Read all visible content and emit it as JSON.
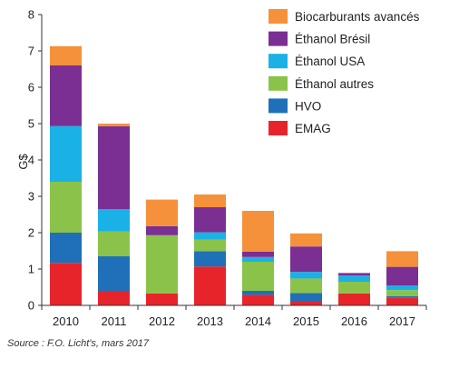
{
  "chart_data": {
    "type": "bar",
    "stacked": true,
    "categories": [
      "2010",
      "2011",
      "2012",
      "2013",
      "2014",
      "2015",
      "2016",
      "2017"
    ],
    "ylabel": "G$",
    "ylim": [
      0,
      8
    ],
    "yticks": [
      0,
      1,
      2,
      3,
      4,
      5,
      6,
      7,
      8
    ],
    "grid": false,
    "legend_position": "top-right",
    "series": [
      {
        "name": "EMAG",
        "color": "#e8242b",
        "values": [
          1.17,
          0.4,
          0.33,
          1.07,
          0.29,
          0.1,
          0.33,
          0.22
        ]
      },
      {
        "name": "HVO",
        "color": "#1f70b8",
        "values": [
          0.83,
          0.95,
          0.0,
          0.42,
          0.11,
          0.24,
          0.0,
          0.03
        ]
      },
      {
        "name": "Éthanol autres",
        "color": "#8bc34a",
        "values": [
          1.4,
          0.68,
          1.6,
          0.32,
          0.8,
          0.4,
          0.32,
          0.17
        ]
      },
      {
        "name": "Éthanol USA",
        "color": "#1ab1e6",
        "values": [
          1.53,
          0.62,
          0.0,
          0.2,
          0.13,
          0.18,
          0.17,
          0.13
        ]
      },
      {
        "name": "Éthanol Brésil",
        "color": "#7b2f92",
        "values": [
          1.67,
          2.28,
          0.25,
          0.69,
          0.15,
          0.7,
          0.07,
          0.51
        ]
      },
      {
        "name": "Biocarburants avancés",
        "color": "#f5913a",
        "values": [
          0.53,
          0.07,
          0.73,
          0.35,
          1.12,
          0.36,
          0.0,
          0.43
        ]
      }
    ],
    "legend_order": [
      "Biocarburants avancés",
      "Éthanol Brésil",
      "Éthanol USA",
      "Éthanol autres",
      "HVO",
      "EMAG"
    ]
  },
  "source_text": "Source : F.O. Licht's, mars 2017"
}
